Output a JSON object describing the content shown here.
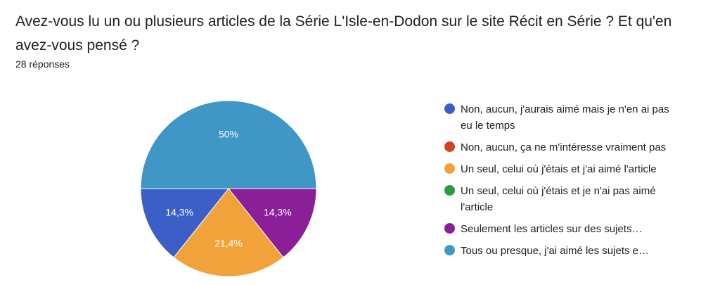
{
  "question": {
    "title": "Avez-vous lu un ou plusieurs articles de la Série L'Isle-en-Dodon sur le site Récit en Série ? Et qu'en avez-vous pensé ?",
    "responses": "28 réponses"
  },
  "chart_data": {
    "type": "pie",
    "title": "",
    "total_responses": 28,
    "categories": [
      "Non, aucun, j'aurais aimé mais je n'en ai pas eu le temps",
      "Non, aucun, ça ne m'intéresse vraiment pas",
      "Un seul, celui où j'étais et j'ai aimé l'article",
      "Un seul, celui où j'étais et je n'ai pas aimé l'article",
      "Seulement les articles sur des sujets…",
      "Tous ou presque, j'ai aimé les sujets e…"
    ],
    "values": [
      14.3,
      0,
      21.4,
      0,
      14.3,
      50
    ],
    "labels": [
      "14,3%",
      "",
      "21,4%",
      "",
      "14,3%",
      "50%"
    ],
    "colors": [
      "#3b5fc7",
      "#d0431f",
      "#f2a23b",
      "#2e9a3a",
      "#8b1f98",
      "#4096c4"
    ],
    "legend_position": "right"
  }
}
